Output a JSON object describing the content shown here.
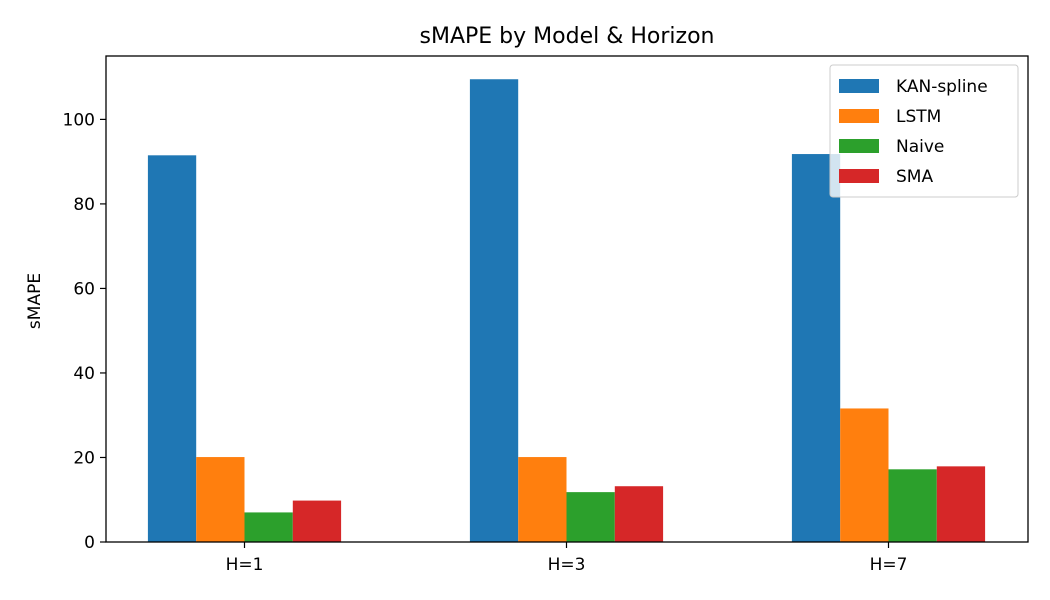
{
  "chart_data": {
    "type": "bar",
    "title": "sMAPE by Model & Horizon",
    "xlabel": "",
    "ylabel": "sMAPE",
    "categories": [
      "H=1",
      "H=3",
      "H=7"
    ],
    "series": [
      {
        "name": "KAN-spline",
        "color": "#1f77b4",
        "values": [
          91.5,
          109.5,
          91.8
        ]
      },
      {
        "name": "LSTM",
        "color": "#ff7f0e",
        "values": [
          20.1,
          20.1,
          31.6
        ]
      },
      {
        "name": "Naive",
        "color": "#2ca02c",
        "values": [
          7.0,
          11.8,
          17.2
        ]
      },
      {
        "name": "SMA",
        "color": "#d62728",
        "values": [
          9.8,
          13.2,
          17.9
        ]
      }
    ],
    "ylim": [
      0,
      115
    ],
    "yticks": [
      0,
      20,
      40,
      60,
      80,
      100
    ],
    "grid": false,
    "legend_position": "top-right"
  }
}
